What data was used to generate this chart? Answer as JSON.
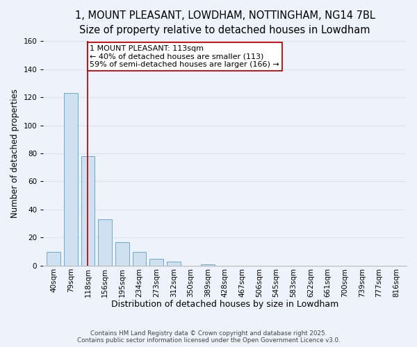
{
  "title": "1, MOUNT PLEASANT, LOWDHAM, NOTTINGHAM, NG14 7BL",
  "subtitle": "Size of property relative to detached houses in Lowdham",
  "xlabel": "Distribution of detached houses by size in Lowdham",
  "ylabel": "Number of detached properties",
  "bar_labels": [
    "40sqm",
    "79sqm",
    "118sqm",
    "156sqm",
    "195sqm",
    "234sqm",
    "273sqm",
    "312sqm",
    "350sqm",
    "389sqm",
    "428sqm",
    "467sqm",
    "506sqm",
    "545sqm",
    "583sqm",
    "622sqm",
    "661sqm",
    "700sqm",
    "739sqm",
    "777sqm",
    "816sqm"
  ],
  "bar_values": [
    10,
    123,
    78,
    33,
    17,
    10,
    5,
    3,
    0,
    1,
    0,
    0,
    0,
    0,
    0,
    0,
    0,
    0,
    0,
    0,
    0
  ],
  "bar_color": "#cfe0f0",
  "bar_edge_color": "#6aaad4",
  "ylim": [
    0,
    160
  ],
  "yticks": [
    0,
    20,
    40,
    60,
    80,
    100,
    120,
    140,
    160
  ],
  "vline_x_index": 2,
  "vline_color": "#aa0000",
  "annotation_text": "1 MOUNT PLEASANT: 113sqm\n← 40% of detached houses are smaller (113)\n59% of semi-detached houses are larger (166) →",
  "annotation_box_edgecolor": "#cc0000",
  "annotation_box_facecolor": "#ffffff",
  "footer_line1": "Contains HM Land Registry data © Crown copyright and database right 2025.",
  "footer_line2": "Contains public sector information licensed under the Open Government Licence v3.0.",
  "background_color": "#eef2fb",
  "grid_color": "#d8e4f0",
  "title_fontsize": 10.5,
  "subtitle_fontsize": 9.5,
  "xlabel_fontsize": 9,
  "ylabel_fontsize": 8.5,
  "tick_fontsize": 7.5,
  "annotation_fontsize": 8
}
